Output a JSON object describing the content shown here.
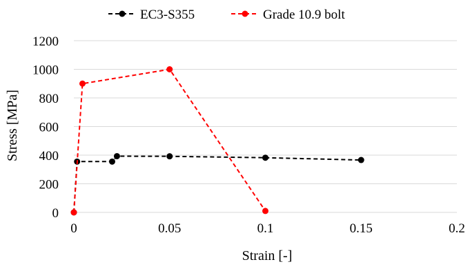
{
  "chart_data": {
    "type": "line",
    "title": "",
    "xlabel": "Strain [-]",
    "ylabel": "Stress [MPa]",
    "xlim": [
      0,
      0.2
    ],
    "ylim": [
      0,
      1200
    ],
    "xticks": [
      0,
      0.05,
      0.1,
      0.15,
      0.2
    ],
    "xtick_labels": [
      "0",
      "0.05",
      "0.1",
      "0.15",
      "0.2"
    ],
    "yticks": [
      0,
      200,
      400,
      600,
      800,
      1000,
      1200
    ],
    "ytick_labels": [
      "0",
      "200",
      "400",
      "600",
      "800",
      "1000",
      "1200"
    ],
    "grid": "horizontal",
    "legend_position": "top",
    "series": [
      {
        "name": "EC3-S355",
        "color": "#000000",
        "line_style": "dashed",
        "marker": "circle",
        "points": [
          {
            "x": 0,
            "y": 0
          },
          {
            "x": 0.0017,
            "y": 355
          },
          {
            "x": 0.02,
            "y": 355
          },
          {
            "x": 0.0225,
            "y": 393
          },
          {
            "x": 0.05,
            "y": 392
          },
          {
            "x": 0.1,
            "y": 382
          },
          {
            "x": 0.15,
            "y": 366
          }
        ]
      },
      {
        "name": "Grade 10.9 bolt",
        "color": "#ff0000",
        "line_style": "dashed",
        "marker": "circle",
        "points": [
          {
            "x": 0,
            "y": 0
          },
          {
            "x": 0.0045,
            "y": 900
          },
          {
            "x": 0.05,
            "y": 1000
          },
          {
            "x": 0.1,
            "y": 10
          }
        ]
      }
    ]
  }
}
